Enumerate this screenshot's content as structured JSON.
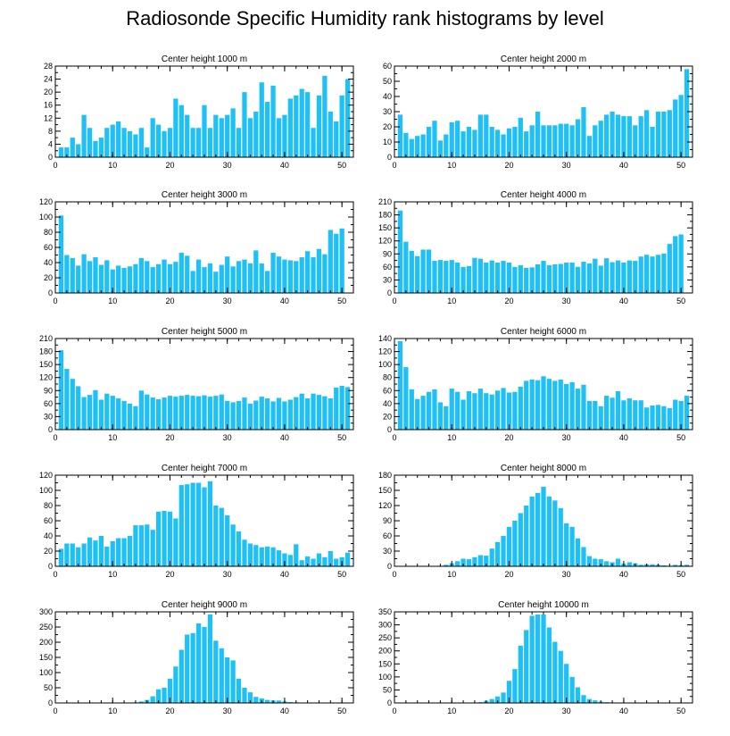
{
  "figure": {
    "title": "Radiosonde Specific Humidity rank histograms by level",
    "bar_color": "#1ec0f8",
    "axis_color": "#000000"
  },
  "chart_data": [
    {
      "type": "bar",
      "title": "Center height 1000 m",
      "ylim": [
        0,
        28
      ],
      "yticks": [
        0,
        4,
        8,
        12,
        16,
        20,
        24,
        28
      ],
      "xlim": [
        0,
        52
      ],
      "xticks": [
        0,
        10,
        20,
        30,
        40,
        50
      ],
      "x_start": 1,
      "values": [
        3,
        3,
        6,
        4,
        13,
        9,
        5,
        6,
        9,
        10,
        11,
        9,
        8,
        7,
        9,
        3,
        12,
        10,
        8,
        9,
        18,
        16,
        13,
        9,
        9,
        16,
        9,
        13,
        12,
        13,
        15,
        9,
        20,
        12,
        14,
        23,
        17,
        22,
        12,
        13,
        18,
        19,
        21,
        20,
        9,
        19,
        25,
        14,
        11,
        19,
        24
      ]
    },
    {
      "type": "bar",
      "title": "Center height 2000 m",
      "ylim": [
        0,
        60
      ],
      "yticks": [
        0,
        10,
        20,
        30,
        40,
        50,
        60
      ],
      "xlim": [
        0,
        52
      ],
      "xticks": [
        0,
        10,
        20,
        30,
        40,
        50
      ],
      "x_start": 1,
      "values": [
        28,
        16,
        12,
        14,
        15,
        20,
        24,
        11,
        15,
        23,
        24,
        17,
        20,
        18,
        28,
        28,
        20,
        18,
        15,
        19,
        20,
        26,
        17,
        21,
        30,
        21,
        21,
        21,
        22,
        22,
        21,
        25,
        33,
        14,
        21,
        24,
        28,
        30,
        28,
        27,
        27,
        21,
        27,
        31,
        20,
        30,
        30,
        31,
        38,
        41,
        58
      ]
    },
    {
      "type": "bar",
      "title": "Center height 3000 m",
      "ylim": [
        0,
        120
      ],
      "yticks": [
        0,
        20,
        40,
        60,
        80,
        100,
        120
      ],
      "xlim": [
        0,
        52
      ],
      "xticks": [
        0,
        10,
        20,
        30,
        40,
        50
      ],
      "x_start": 1,
      "values": [
        102,
        50,
        46,
        36,
        51,
        42,
        47,
        37,
        43,
        31,
        36,
        33,
        35,
        38,
        46,
        42,
        34,
        38,
        44,
        38,
        41,
        53,
        49,
        29,
        44,
        34,
        39,
        28,
        37,
        48,
        35,
        42,
        44,
        39,
        56,
        39,
        29,
        53,
        48,
        44,
        43,
        42,
        47,
        55,
        47,
        58,
        51,
        83,
        78,
        85
      ]
    },
    {
      "type": "bar",
      "title": "Center height 4000 m",
      "ylim": [
        0,
        210
      ],
      "yticks": [
        0,
        30,
        60,
        90,
        120,
        150,
        180,
        210
      ],
      "xlim": [
        0,
        52
      ],
      "xticks": [
        0,
        10,
        20,
        30,
        40,
        50
      ],
      "x_start": 1,
      "values": [
        190,
        118,
        97,
        85,
        100,
        100,
        74,
        76,
        74,
        76,
        70,
        60,
        62,
        81,
        79,
        70,
        75,
        70,
        74,
        70,
        60,
        64,
        58,
        59,
        66,
        74,
        64,
        66,
        67,
        70,
        70,
        60,
        72,
        68,
        79,
        63,
        80,
        71,
        75,
        70,
        75,
        74,
        84,
        88,
        84,
        88,
        91,
        113,
        131,
        135
      ]
    },
    {
      "type": "bar",
      "title": "Center height 5000 m",
      "ylim": [
        0,
        210
      ],
      "yticks": [
        0,
        30,
        60,
        90,
        120,
        150,
        180,
        210
      ],
      "xlim": [
        0,
        52
      ],
      "xticks": [
        0,
        10,
        20,
        30,
        40,
        50
      ],
      "x_start": 1,
      "values": [
        183,
        140,
        117,
        100,
        75,
        80,
        91,
        69,
        83,
        78,
        72,
        66,
        60,
        54,
        90,
        81,
        74,
        70,
        74,
        78,
        76,
        78,
        80,
        78,
        77,
        79,
        76,
        78,
        81,
        66,
        63,
        66,
        74,
        60,
        67,
        76,
        72,
        65,
        73,
        65,
        69,
        75,
        83,
        72,
        83,
        80,
        77,
        72,
        97,
        101,
        98
      ]
    },
    {
      "type": "bar",
      "title": "Center height 6000 m",
      "ylim": [
        0,
        140
      ],
      "yticks": [
        0,
        20,
        40,
        60,
        80,
        100,
        120,
        140
      ],
      "xlim": [
        0,
        52
      ],
      "xticks": [
        0,
        10,
        20,
        30,
        40,
        50
      ],
      "x_start": 1,
      "values": [
        136,
        96,
        62,
        47,
        52,
        58,
        62,
        42,
        36,
        63,
        58,
        46,
        59,
        56,
        63,
        56,
        54,
        60,
        64,
        57,
        58,
        66,
        75,
        77,
        76,
        82,
        78,
        75,
        77,
        70,
        73,
        63,
        69,
        44,
        44,
        36,
        52,
        49,
        59,
        45,
        48,
        45,
        45,
        34,
        37,
        38,
        36,
        33,
        46,
        44,
        52
      ]
    },
    {
      "type": "bar",
      "title": "Center height 7000 m",
      "ylim": [
        0,
        120
      ],
      "yticks": [
        0,
        20,
        40,
        60,
        80,
        100,
        120
      ],
      "xlim": [
        0,
        52
      ],
      "xticks": [
        0,
        10,
        20,
        30,
        40,
        50
      ],
      "x_start": 1,
      "values": [
        23,
        30,
        30,
        25,
        30,
        38,
        34,
        40,
        26,
        33,
        37,
        37,
        40,
        54,
        54,
        55,
        48,
        72,
        73,
        72,
        63,
        107,
        108,
        110,
        110,
        104,
        112,
        80,
        77,
        67,
        55,
        46,
        35,
        30,
        28,
        25,
        26,
        25,
        21,
        17,
        15,
        29,
        8,
        13,
        10,
        17,
        12,
        20,
        10,
        12,
        18
      ]
    },
    {
      "type": "bar",
      "title": "Center height 8000 m",
      "ylim": [
        0,
        180
      ],
      "yticks": [
        0,
        30,
        60,
        90,
        120,
        150,
        180
      ],
      "xlim": [
        0,
        52
      ],
      "xticks": [
        0,
        10,
        20,
        30,
        40,
        50
      ],
      "x_start": 1,
      "values": [
        0,
        0,
        0,
        0,
        0,
        0,
        0,
        1,
        3,
        6,
        10,
        15,
        14,
        18,
        22,
        21,
        35,
        48,
        60,
        78,
        90,
        105,
        120,
        138,
        145,
        157,
        138,
        130,
        115,
        85,
        78,
        55,
        38,
        20,
        15,
        14,
        10,
        8,
        15,
        5,
        8,
        6,
        3,
        4,
        4,
        3,
        2,
        1,
        3,
        2,
        3
      ]
    },
    {
      "type": "bar",
      "title": "Center height 9000 m",
      "ylim": [
        0,
        300
      ],
      "yticks": [
        0,
        50,
        100,
        150,
        200,
        250,
        300
      ],
      "xlim": [
        0,
        52
      ],
      "xticks": [
        0,
        10,
        20,
        30,
        40,
        50
      ],
      "x_start": 1,
      "values": [
        0,
        0,
        0,
        0,
        0,
        0,
        0,
        0,
        0,
        0,
        0,
        0,
        1,
        2,
        5,
        10,
        22,
        45,
        50,
        80,
        120,
        175,
        225,
        230,
        262,
        250,
        292,
        205,
        180,
        150,
        140,
        80,
        50,
        35,
        20,
        15,
        10,
        8,
        8,
        5,
        3,
        2,
        1,
        1,
        1,
        0,
        0,
        0,
        0,
        0,
        0
      ]
    },
    {
      "type": "bar",
      "title": "Center height 10000 m",
      "ylim": [
        0,
        350
      ],
      "yticks": [
        0,
        50,
        100,
        150,
        200,
        250,
        300,
        350
      ],
      "xlim": [
        0,
        52
      ],
      "xticks": [
        0,
        10,
        20,
        30,
        40,
        50
      ],
      "x_start": 1,
      "values": [
        0,
        0,
        0,
        0,
        0,
        0,
        0,
        0,
        0,
        0,
        0,
        0,
        0,
        1,
        3,
        8,
        15,
        25,
        40,
        85,
        130,
        220,
        280,
        335,
        340,
        340,
        290,
        235,
        200,
        150,
        100,
        60,
        30,
        15,
        10,
        5,
        3,
        2,
        1,
        1,
        1,
        0,
        0,
        0,
        0,
        1,
        0,
        0,
        0,
        0,
        0
      ]
    }
  ]
}
